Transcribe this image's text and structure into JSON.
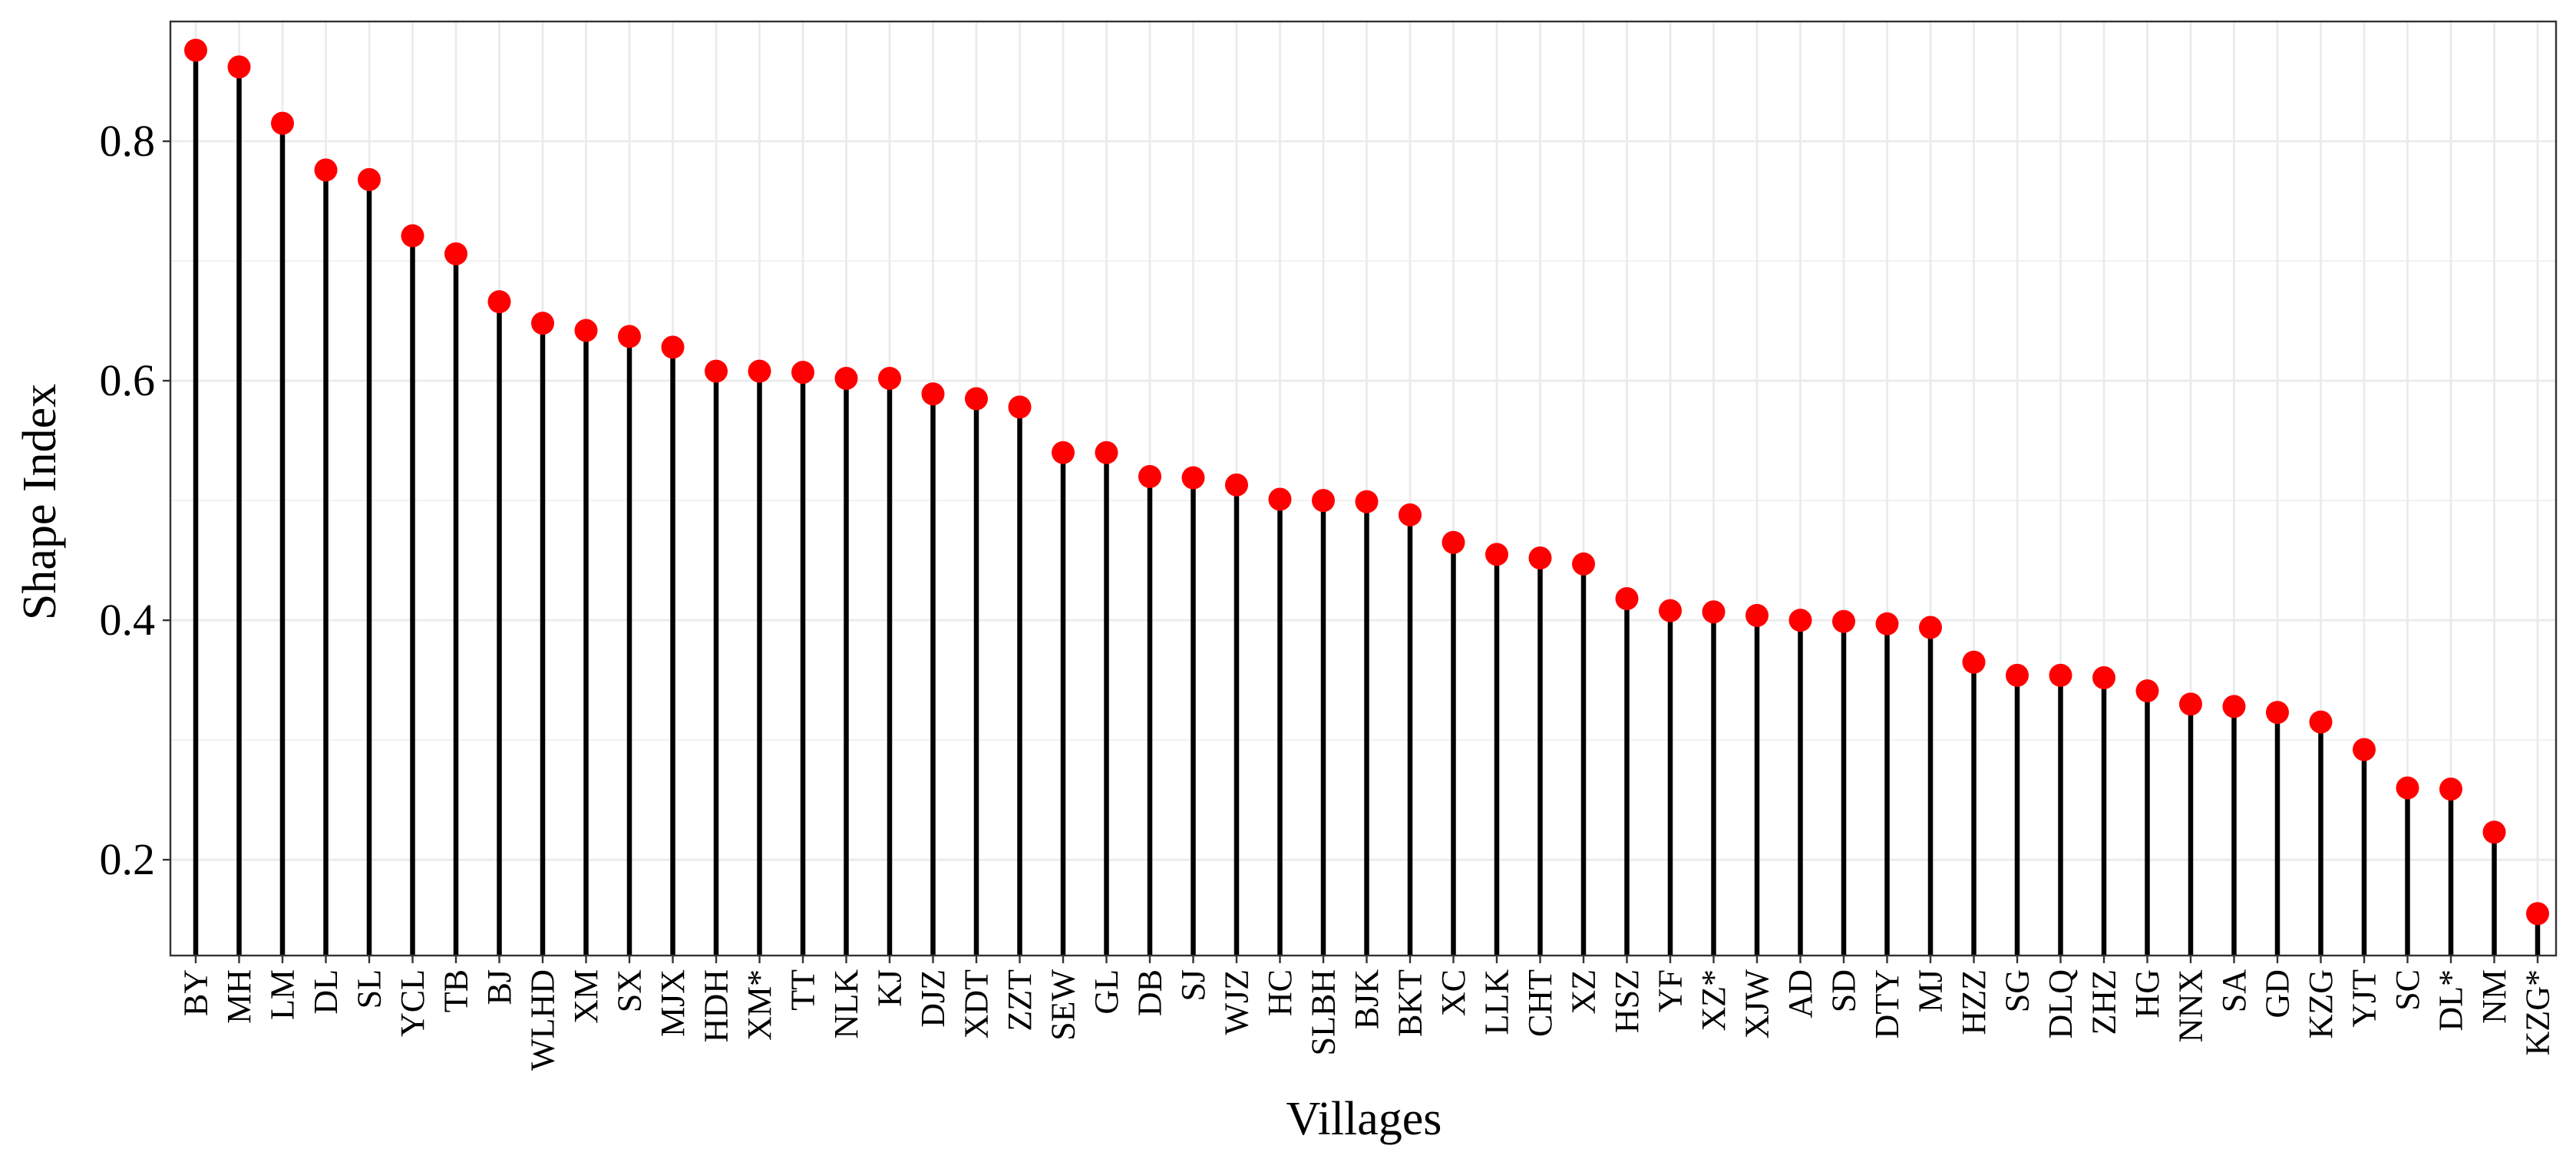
{
  "chart_data": {
    "type": "lollipop",
    "xlabel": "Villages",
    "ylabel": "Shape Index",
    "ylim": [
      0.12,
      0.9
    ],
    "yticks": [
      0.2,
      0.4,
      0.6,
      0.8
    ],
    "ytick_labels": [
      "0.2",
      "0.4",
      "0.6",
      "0.8"
    ],
    "grid": true,
    "point_color": "#ff0000",
    "stem_color": "#000000",
    "grid_color": "#ebebeb",
    "categories": [
      "BY",
      "MH",
      "LM",
      "DL",
      "SL",
      "YCL",
      "TB",
      "BJ",
      "WLHD",
      "XM",
      "SX",
      "MJX",
      "HDH",
      "XM*",
      "TT",
      "NLK",
      "KJ",
      "DJZ",
      "XDT",
      "ZZT",
      "SEW",
      "GL",
      "DB",
      "SJ",
      "WJZ",
      "HC",
      "SLBH",
      "BJK",
      "BKT",
      "XC",
      "LLK",
      "CHT",
      "XZ",
      "HSZ",
      "YF",
      "XZ*",
      "XJW",
      "AD",
      "SD",
      "DTY",
      "MJ",
      "HZZ",
      "SG",
      "DLQ",
      "ZHZ",
      "HG",
      "NNX",
      "SA",
      "GD",
      "KZG",
      "YJT",
      "SC",
      "DL*",
      "NM",
      "KZG*"
    ],
    "values": [
      0.876,
      0.862,
      0.815,
      0.776,
      0.768,
      0.721,
      0.706,
      0.666,
      0.648,
      0.642,
      0.637,
      0.628,
      0.608,
      0.608,
      0.607,
      0.602,
      0.602,
      0.589,
      0.585,
      0.578,
      0.54,
      0.54,
      0.52,
      0.519,
      0.513,
      0.501,
      0.5,
      0.499,
      0.488,
      0.465,
      0.455,
      0.452,
      0.447,
      0.418,
      0.408,
      0.407,
      0.404,
      0.4,
      0.399,
      0.397,
      0.394,
      0.365,
      0.354,
      0.354,
      0.352,
      0.341,
      0.33,
      0.328,
      0.323,
      0.315,
      0.292,
      0.26,
      0.259,
      0.223,
      0.155
    ]
  }
}
